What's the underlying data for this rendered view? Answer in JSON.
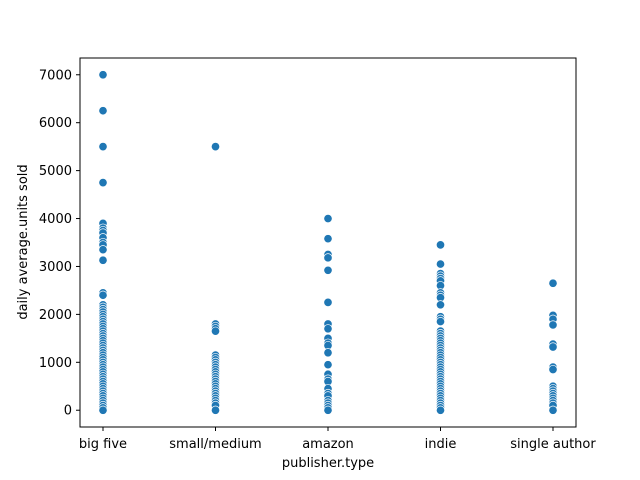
{
  "chart_data": {
    "type": "scatter",
    "title": "",
    "xlabel": "publisher.type",
    "ylabel": "daily average.units sold",
    "categories": [
      "big five",
      "small/medium",
      "amazon",
      "indie",
      "single author"
    ],
    "yticks": [
      0,
      1000,
      2000,
      3000,
      4000,
      5000,
      6000,
      7000
    ],
    "ylim": [
      -350,
      7350
    ],
    "grid": false,
    "legend": "none",
    "marker_color": "#1f77b4",
    "marker_edge": "#ffffff",
    "points": [
      {
        "category": "big five",
        "y": [
          7000,
          6250,
          5500,
          4750,
          3900,
          3800,
          3750,
          3700,
          3600,
          3500,
          3450,
          3350,
          3130,
          2450,
          2400,
          2200,
          2150,
          2100,
          2050,
          2000,
          1950,
          1900,
          1850,
          1800,
          1750,
          1700,
          1650,
          1600,
          1550,
          1500,
          1450,
          1400,
          1350,
          1300,
          1250,
          1200,
          1150,
          1100,
          1050,
          1000,
          950,
          900,
          850,
          800,
          750,
          700,
          650,
          600,
          550,
          500,
          450,
          400,
          350,
          300,
          250,
          200,
          150,
          100,
          50,
          0
        ]
      },
      {
        "category": "small/medium",
        "y": [
          5500,
          1800,
          1750,
          1700,
          1650,
          1150,
          1100,
          1050,
          1000,
          950,
          900,
          850,
          800,
          750,
          700,
          650,
          600,
          550,
          500,
          450,
          400,
          350,
          300,
          250,
          200,
          150,
          100,
          0
        ]
      },
      {
        "category": "amazon",
        "y": [
          4000,
          3580,
          3250,
          3180,
          2920,
          2250,
          1800,
          1700,
          1500,
          1400,
          1350,
          1200,
          950,
          750,
          650,
          600,
          450,
          350,
          300,
          200,
          150,
          100,
          50,
          0
        ]
      },
      {
        "category": "indie",
        "y": [
          3450,
          3050,
          2850,
          2800,
          2750,
          2700,
          2600,
          2450,
          2400,
          2350,
          2200,
          1950,
          1900,
          1850,
          1650,
          1600,
          1550,
          1500,
          1450,
          1400,
          1350,
          1300,
          1250,
          1200,
          1150,
          1100,
          1050,
          1000,
          950,
          900,
          850,
          800,
          750,
          700,
          650,
          600,
          550,
          500,
          450,
          400,
          350,
          300,
          250,
          200,
          150,
          100,
          50,
          0
        ]
      },
      {
        "category": "single author",
        "y": [
          2650,
          1980,
          1900,
          1780,
          1380,
          1320,
          900,
          850,
          500,
          450,
          400,
          350,
          300,
          250,
          200,
          150,
          100,
          0
        ]
      }
    ]
  }
}
